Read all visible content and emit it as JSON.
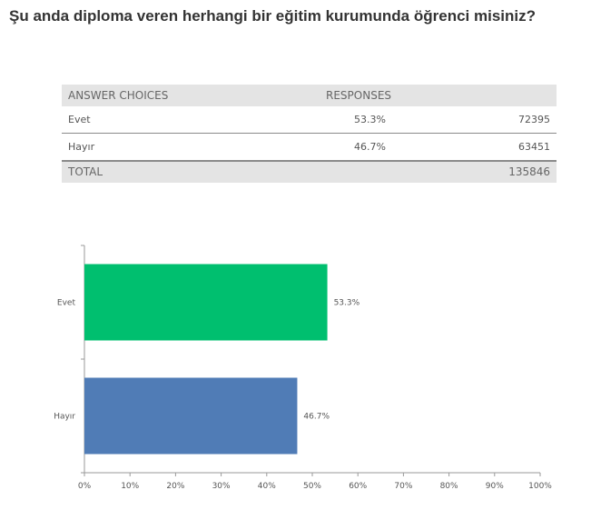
{
  "question": "Şu anda diploma veren herhangi bir eğitim kurumunda öğrenci misiniz?",
  "table": {
    "header": {
      "choices": "ANSWER CHOICES",
      "responses": "RESPONSES"
    },
    "rows": [
      {
        "choice": "Evet",
        "percent": "53.3%",
        "count": "72395"
      },
      {
        "choice": "Hayır",
        "percent": "46.7%",
        "count": "63451"
      }
    ],
    "total": {
      "label": "TOTAL",
      "count": "135846"
    }
  },
  "chart_data": {
    "type": "bar",
    "orientation": "horizontal",
    "categories": [
      "Evet",
      "Hayır"
    ],
    "values": [
      53.3,
      46.7
    ],
    "data_labels": [
      "53.3%",
      "46.7%"
    ],
    "colors": [
      "#00bf6f",
      "#507cb6"
    ],
    "xlim": [
      0,
      100
    ],
    "x_ticks": [
      "0%",
      "10%",
      "20%",
      "30%",
      "40%",
      "50%",
      "60%",
      "70%",
      "80%",
      "90%",
      "100%"
    ],
    "grid": false
  }
}
